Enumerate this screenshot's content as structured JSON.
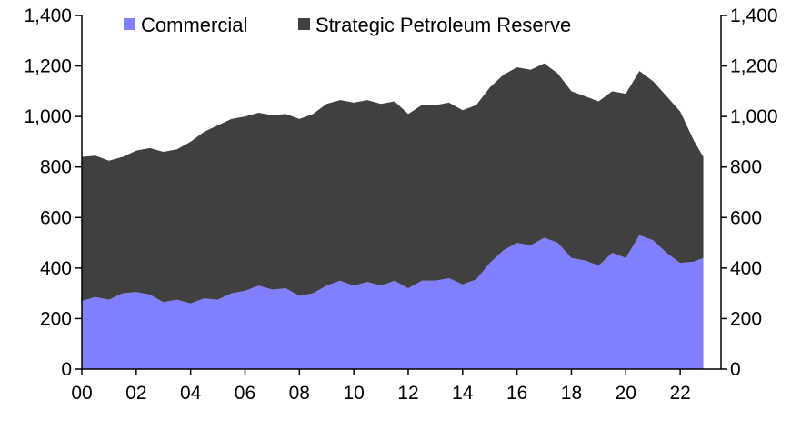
{
  "chart_data": {
    "type": "area",
    "stacked": true,
    "x_tick_labels": [
      "00",
      "02",
      "04",
      "06",
      "08",
      "10",
      "12",
      "14",
      "16",
      "18",
      "20",
      "22"
    ],
    "x_tick_values": [
      2000,
      2002,
      2004,
      2006,
      2008,
      2010,
      2012,
      2014,
      2016,
      2018,
      2020,
      2022
    ],
    "xlim": [
      2000,
      2023.5
    ],
    "ylim": [
      0,
      1400
    ],
    "y_ticks": [
      0,
      200,
      400,
      600,
      800,
      1000,
      1200,
      1400
    ],
    "y_tick_labels": [
      "0",
      "200",
      "400",
      "600",
      "800",
      "1,000",
      "1,200",
      "1,400"
    ],
    "secondary_y_tick_labels": [
      "0",
      "200",
      "400",
      "600",
      "800",
      "1,000",
      "1,200",
      "1,400"
    ],
    "grid": false,
    "legend": {
      "position": "top"
    },
    "x": [
      2000.0,
      2000.5,
      2001.0,
      2001.5,
      2002.0,
      2002.5,
      2003.0,
      2003.5,
      2004.0,
      2004.5,
      2005.0,
      2005.5,
      2006.0,
      2006.5,
      2007.0,
      2007.5,
      2008.0,
      2008.5,
      2009.0,
      2009.5,
      2010.0,
      2010.5,
      2011.0,
      2011.5,
      2012.0,
      2012.5,
      2013.0,
      2013.5,
      2014.0,
      2014.5,
      2015.0,
      2015.5,
      2016.0,
      2016.5,
      2017.0,
      2017.5,
      2018.0,
      2018.5,
      2019.0,
      2019.5,
      2020.0,
      2020.5,
      2021.0,
      2021.5,
      2022.0,
      2022.5,
      2022.85
    ],
    "series": [
      {
        "name": "Commercial",
        "color": "#8080ff",
        "values": [
          270,
          285,
          275,
          300,
          305,
          295,
          265,
          275,
          260,
          280,
          275,
          300,
          310,
          330,
          315,
          320,
          290,
          300,
          330,
          350,
          330,
          345,
          330,
          350,
          320,
          350,
          350,
          360,
          335,
          355,
          420,
          470,
          500,
          490,
          520,
          500,
          440,
          430,
          410,
          460,
          440,
          530,
          510,
          460,
          420,
          425,
          440
        ]
      },
      {
        "name": "Strategic Petroleum Reserve",
        "color": "#404040",
        "values": [
          570,
          560,
          550,
          540,
          560,
          580,
          595,
          595,
          640,
          660,
          690,
          690,
          690,
          685,
          690,
          690,
          700,
          710,
          720,
          715,
          725,
          720,
          720,
          710,
          690,
          695,
          695,
          695,
          690,
          690,
          695,
          695,
          695,
          695,
          690,
          670,
          660,
          650,
          650,
          640,
          650,
          650,
          630,
          620,
          600,
          480,
          400
        ]
      }
    ]
  }
}
